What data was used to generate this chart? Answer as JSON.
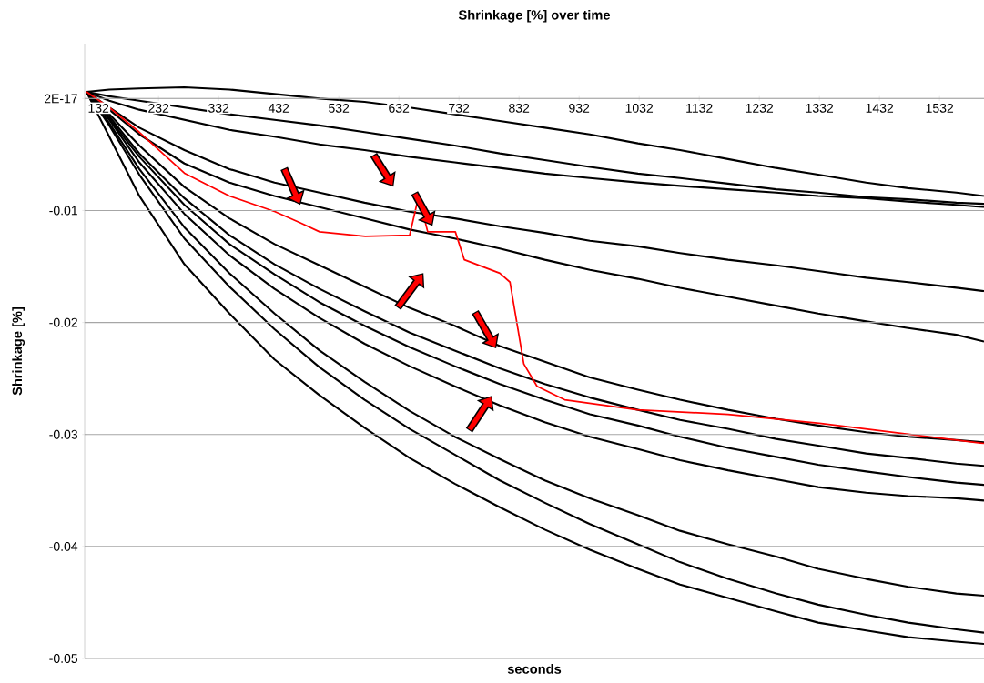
{
  "chart_data": {
    "type": "line",
    "title": "Shrinkage [%] over time",
    "xlabel": "seconds",
    "ylabel": "Shrinkage [%]",
    "x": [
      112,
      150,
      200,
      275,
      350,
      425,
      500,
      575,
      650,
      725,
      800,
      875,
      950,
      1030,
      1100,
      1180,
      1260,
      1330,
      1410,
      1480,
      1560,
      1606
    ],
    "series": [
      {
        "color": "#000000",
        "values": [
          0.0006,
          0.0008,
          0.0009,
          0.001,
          0.0008,
          0.0004,
          0,
          -0.0003,
          -0.0008,
          -0.0014,
          -0.002,
          -0.0026,
          -0.0032,
          -0.004,
          -0.0046,
          -0.0054,
          -0.0062,
          -0.0068,
          -0.0075,
          -0.008,
          -0.0084,
          -0.0087
        ]
      },
      {
        "color": "#000000",
        "values": [
          0.0006,
          0.0002,
          -0.0002,
          -0.0008,
          -0.0014,
          -0.0019,
          -0.0024,
          -0.003,
          -0.0036,
          -0.0042,
          -0.0049,
          -0.0055,
          -0.0061,
          -0.0067,
          -0.0071,
          -0.0076,
          -0.0081,
          -0.0084,
          -0.0088,
          -0.009,
          -0.0093,
          -0.0094
        ]
      },
      {
        "color": "#000000",
        "values": [
          0.0006,
          -0.0002,
          -0.001,
          -0.0019,
          -0.0028,
          -0.0034,
          -0.0041,
          -0.0046,
          -0.0052,
          -0.0057,
          -0.0062,
          -0.0067,
          -0.0071,
          -0.0075,
          -0.0078,
          -0.0081,
          -0.0084,
          -0.0087,
          -0.0089,
          -0.0092,
          -0.0095,
          -0.0097
        ]
      },
      {
        "color": "#000000",
        "values": [
          0.0006,
          -0.0008,
          -0.0026,
          -0.0046,
          -0.0063,
          -0.0075,
          -0.0084,
          -0.0093,
          -0.0101,
          -0.0107,
          -0.0114,
          -0.012,
          -0.0127,
          -0.0132,
          -0.0138,
          -0.0144,
          -0.0149,
          -0.0154,
          -0.016,
          -0.0164,
          -0.0169,
          -0.0172
        ]
      },
      {
        "color": "#000000",
        "values": [
          0.0006,
          -0.001,
          -0.0032,
          -0.0058,
          -0.0075,
          -0.0087,
          -0.0097,
          -0.0107,
          -0.0117,
          -0.0125,
          -0.0134,
          -0.0144,
          -0.0153,
          -0.0161,
          -0.0169,
          -0.0177,
          -0.0185,
          -0.0192,
          -0.0199,
          -0.0205,
          -0.0211,
          -0.0217
        ]
      },
      {
        "color": "#000000",
        "values": [
          0.0006,
          -0.0014,
          -0.0042,
          -0.0079,
          -0.0107,
          -0.013,
          -0.0149,
          -0.0168,
          -0.0187,
          -0.0203,
          -0.0221,
          -0.0235,
          -0.0249,
          -0.026,
          -0.0269,
          -0.0278,
          -0.0286,
          -0.0292,
          -0.0298,
          -0.0302,
          -0.0305,
          -0.0307
        ]
      },
      {
        "color": "#000000",
        "values": [
          0.0006,
          -0.0016,
          -0.0049,
          -0.0089,
          -0.0122,
          -0.0148,
          -0.017,
          -0.019,
          -0.0209,
          -0.0225,
          -0.0241,
          -0.0255,
          -0.0267,
          -0.0278,
          -0.0287,
          -0.0295,
          -0.0304,
          -0.031,
          -0.0317,
          -0.0321,
          -0.0326,
          -0.0328
        ]
      },
      {
        "color": "#000000",
        "values": [
          0.0006,
          -0.0018,
          -0.0052,
          -0.0095,
          -0.013,
          -0.0157,
          -0.0182,
          -0.0203,
          -0.0222,
          -0.0239,
          -0.0255,
          -0.0269,
          -0.0282,
          -0.0292,
          -0.0302,
          -0.0312,
          -0.032,
          -0.0327,
          -0.0333,
          -0.0338,
          -0.0343,
          -0.0345
        ]
      },
      {
        "color": "#000000",
        "values": [
          0.0006,
          -0.0019,
          -0.0057,
          -0.0103,
          -0.014,
          -0.017,
          -0.0196,
          -0.0219,
          -0.0239,
          -0.0257,
          -0.0274,
          -0.0289,
          -0.0302,
          -0.0313,
          -0.0323,
          -0.0332,
          -0.034,
          -0.0347,
          -0.0352,
          -0.0355,
          -0.0357,
          -0.0359
        ]
      },
      {
        "color": "#000000",
        "values": [
          0.0006,
          -0.0022,
          -0.0063,
          -0.0115,
          -0.0156,
          -0.0192,
          -0.0225,
          -0.0253,
          -0.0279,
          -0.0302,
          -0.0322,
          -0.0341,
          -0.0357,
          -0.0372,
          -0.0386,
          -0.0398,
          -0.0409,
          -0.042,
          -0.0429,
          -0.0436,
          -0.0442,
          -0.0444
        ]
      },
      {
        "color": "#000000",
        "values": [
          0.0006,
          -0.0024,
          -0.0068,
          -0.0125,
          -0.0168,
          -0.0206,
          -0.024,
          -0.0269,
          -0.0295,
          -0.0318,
          -0.0341,
          -0.0361,
          -0.038,
          -0.0398,
          -0.0414,
          -0.0429,
          -0.0442,
          -0.0452,
          -0.0461,
          -0.0468,
          -0.0474,
          -0.0477
        ]
      },
      {
        "color": "#000000",
        "values": [
          0.0006,
          -0.0034,
          -0.0087,
          -0.0148,
          -0.0192,
          -0.0233,
          -0.0265,
          -0.0294,
          -0.0321,
          -0.0344,
          -0.0365,
          -0.0385,
          -0.0403,
          -0.042,
          -0.0434,
          -0.0446,
          -0.0458,
          -0.0468,
          -0.0475,
          -0.0481,
          -0.0485,
          -0.0487
        ]
      },
      {
        "color": "#ff0000",
        "x": [
          112,
          150,
          200,
          276,
          350,
          426,
          468,
          500,
          576,
          650,
          665,
          680,
          726,
          741,
          800,
          817,
          840,
          862,
          908,
          1029,
          1180,
          1332,
          1483,
          1606
        ],
        "values": [
          0.0006,
          -0.0008,
          -0.003,
          -0.0067,
          -0.0087,
          -0.0101,
          -0.0111,
          -0.0119,
          -0.0123,
          -0.0122,
          -0.0087,
          -0.0119,
          -0.0119,
          -0.0144,
          -0.0156,
          -0.0164,
          -0.0237,
          -0.0257,
          -0.0269,
          -0.0278,
          -0.0282,
          -0.029,
          -0.03,
          -0.0308
        ]
      }
    ],
    "xlim": [
      109,
      1606
    ],
    "ylim": [
      -0.05,
      0.0049
    ],
    "xticks": [
      132,
      232,
      332,
      432,
      532,
      632,
      732,
      832,
      932,
      1032,
      1132,
      1232,
      1332,
      1432,
      1532
    ],
    "yticks": [
      {
        "value": 0,
        "label": "2E-17"
      },
      -0.01,
      -0.02,
      -0.03,
      -0.04,
      -0.05
    ],
    "grid": "y",
    "marker": "none",
    "line_style": "solid"
  }
}
